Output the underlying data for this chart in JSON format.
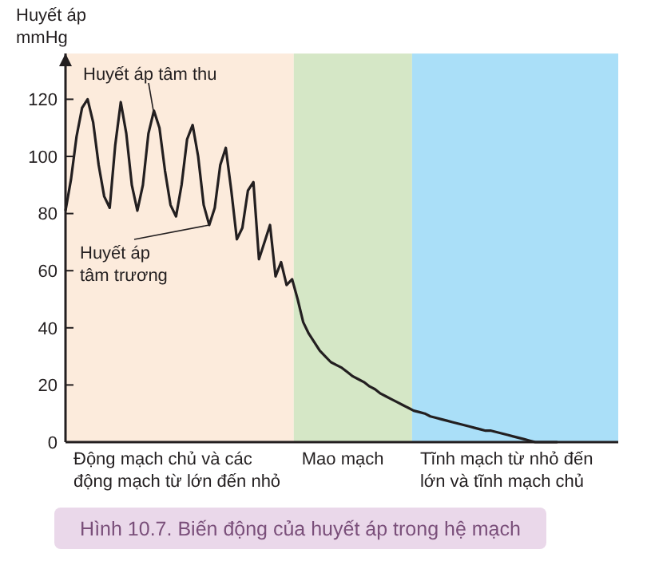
{
  "chart_data": {
    "type": "line",
    "title": "Hình 10.7. Biến động của huyết áp trong hệ mạch",
    "ylabel": "Huyết áp\nmmHg",
    "categories": [
      null,
      null,
      null,
      null,
      null,
      null,
      null,
      null,
      null,
      null,
      null,
      null,
      null,
      null,
      null,
      null,
      null,
      null,
      null,
      null,
      null,
      null,
      null,
      null,
      null,
      null,
      null,
      null,
      null,
      null,
      null,
      null,
      null,
      null,
      null,
      null,
      null,
      null,
      null,
      null,
      null,
      null,
      null,
      null,
      null,
      null,
      null,
      null,
      null,
      null,
      null,
      null,
      null,
      null,
      null,
      null,
      null,
      null,
      null,
      null,
      null,
      null,
      null,
      null,
      null,
      null,
      null,
      null,
      null,
      null,
      null,
      null,
      null,
      null,
      null,
      null,
      null,
      null,
      null,
      null,
      null,
      null,
      null,
      null,
      null,
      null,
      null,
      null,
      null,
      null,
      null,
      null,
      null,
      null,
      null,
      null,
      null,
      null,
      null,
      null,
      null
    ],
    "ylim": [
      0,
      136
    ],
    "yticks": [
      0,
      20,
      40,
      60,
      80,
      100,
      120
    ],
    "tick_labels": "y",
    "marker": "none",
    "line_style": "solid",
    "series": [
      {
        "color": "#231f20",
        "values": [
          81,
          92,
          107,
          117,
          120,
          112,
          97,
          86,
          82,
          104,
          119,
          108,
          90,
          81,
          90,
          108,
          116,
          110,
          95,
          83,
          79,
          90,
          106,
          111,
          100,
          83,
          76,
          82,
          97,
          103,
          88,
          71,
          75,
          88,
          91,
          64,
          70,
          76,
          58,
          63,
          55,
          57,
          50,
          42,
          38,
          35,
          32,
          30,
          28,
          27,
          26,
          24.5,
          23,
          22,
          21,
          19.5,
          18.5,
          17,
          16,
          15,
          14,
          13,
          12,
          11,
          10.5,
          10,
          9,
          8.5,
          8,
          7.5,
          7,
          6.5,
          6,
          5.5,
          5,
          4.5,
          4,
          4,
          3.5,
          3,
          2.5,
          2,
          1.5,
          1,
          0.5,
          0,
          0,
          0,
          0,
          0,
          null,
          null,
          null,
          null,
          null,
          null,
          null,
          null,
          null,
          null,
          null
        ]
      }
    ],
    "annotations": [
      {
        "text": "Huyết áp tâm thu",
        "y": 116
      },
      "Huyết áp\ntâm trương",
      "Động mạch chủ và các\nđộng mạch từ lớn đến nhỏ",
      "Mao mạch",
      "Tĩnh mạch từ nhỏ đến\nlớn và tĩnh mạch chủ"
    ]
  }
}
